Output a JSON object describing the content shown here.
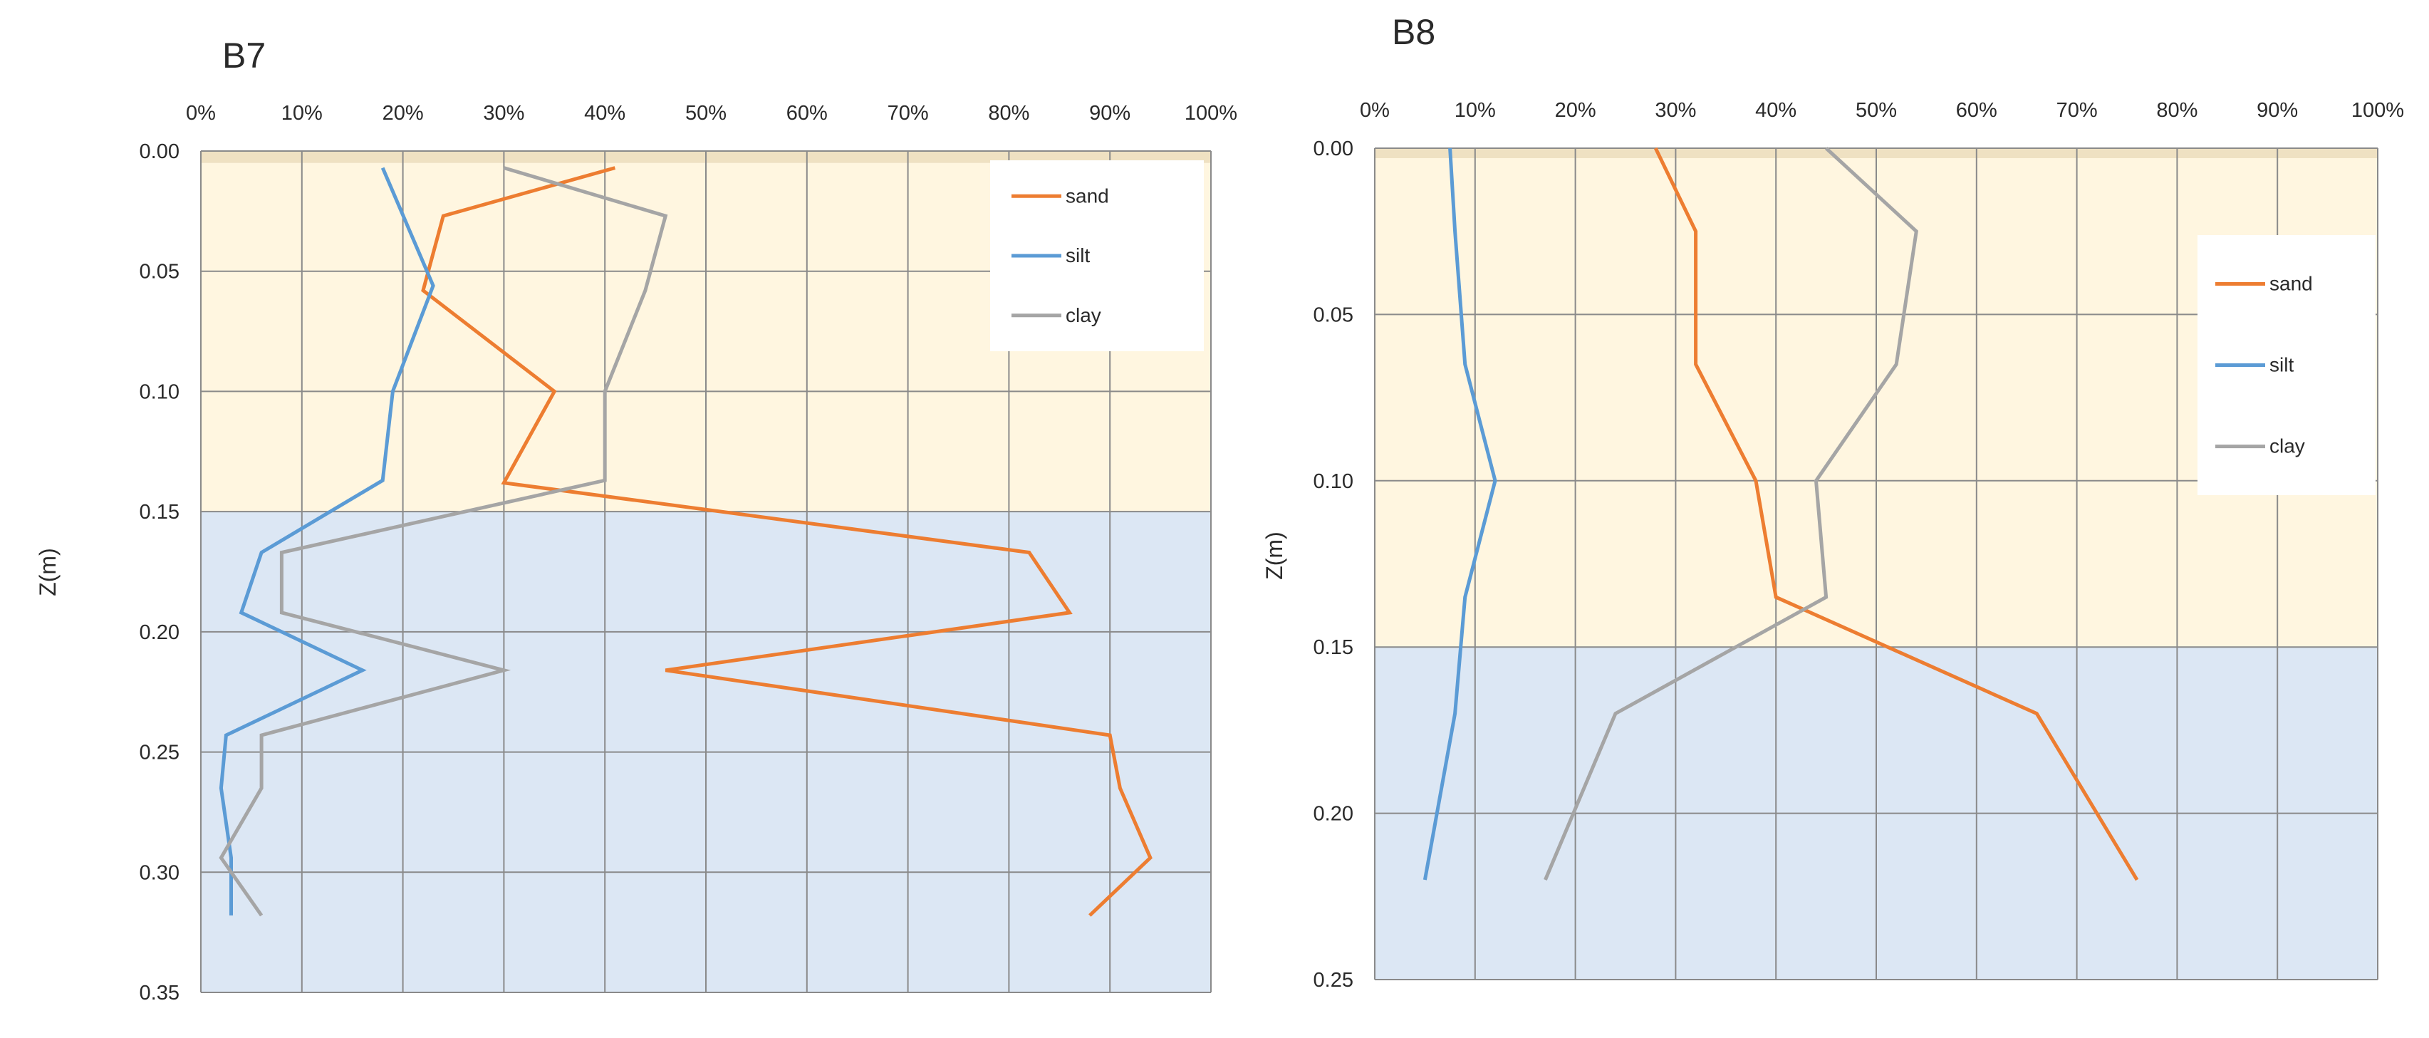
{
  "ylabel": "Z(m)",
  "colors": {
    "sand": "#ED7D31",
    "silt": "#5B9BD5",
    "clay": "#A5A5A5",
    "upper_band": "#FFF6E0",
    "lower_band": "#DCE7F4",
    "top_strip": "#EFE1C2"
  },
  "chart_data": [
    {
      "type": "line",
      "title": "B7",
      "xlabel": "",
      "ylabel": "Z(m)",
      "xlim": [
        0,
        100
      ],
      "ylim": [
        0,
        0.35
      ],
      "x_ticks": [
        "0%",
        "10%",
        "20%",
        "30%",
        "40%",
        "50%",
        "60%",
        "70%",
        "80%",
        "90%",
        "100%"
      ],
      "y_ticks": [
        "0.00",
        "0.05",
        "0.10",
        "0.15",
        "0.20",
        "0.25",
        "0.30",
        "0.35"
      ],
      "bands": [
        {
          "from": 0.0,
          "to": 0.005,
          "color": "top_strip"
        },
        {
          "from": 0.005,
          "to": 0.15,
          "color": "upper_band"
        },
        {
          "from": 0.15,
          "to": 0.35,
          "color": "lower_band"
        }
      ],
      "legend": {
        "position": "top-right"
      },
      "series": [
        {
          "name": "sand",
          "points": [
            [
              41,
              0.007
            ],
            [
              24,
              0.027
            ],
            [
              22,
              0.058
            ],
            [
              35,
              0.1
            ],
            [
              30,
              0.138
            ],
            [
              82,
              0.167
            ],
            [
              86,
              0.192
            ],
            [
              46,
              0.216
            ],
            [
              90,
              0.243
            ],
            [
              91,
              0.265
            ],
            [
              94,
              0.294
            ],
            [
              88,
              0.318
            ]
          ]
        },
        {
          "name": "silt",
          "points": [
            [
              18,
              0.007
            ],
            [
              23,
              0.056
            ],
            [
              19,
              0.1
            ],
            [
              18,
              0.137
            ],
            [
              6,
              0.167
            ],
            [
              4,
              0.192
            ],
            [
              16,
              0.216
            ],
            [
              2.5,
              0.243
            ],
            [
              2,
              0.265
            ],
            [
              3,
              0.294
            ],
            [
              3,
              0.318
            ]
          ]
        },
        {
          "name": "clay",
          "points": [
            [
              30,
              0.007
            ],
            [
              46,
              0.027
            ],
            [
              44,
              0.058
            ],
            [
              40,
              0.1
            ],
            [
              40,
              0.137
            ],
            [
              8,
              0.167
            ],
            [
              8,
              0.192
            ],
            [
              30,
              0.216
            ],
            [
              6,
              0.243
            ],
            [
              6,
              0.265
            ],
            [
              2,
              0.294
            ],
            [
              6,
              0.318
            ]
          ]
        }
      ]
    },
    {
      "type": "line",
      "title": "B8",
      "xlabel": "",
      "ylabel": "Z(m)",
      "xlim": [
        0,
        100
      ],
      "ylim": [
        0,
        0.25
      ],
      "x_ticks": [
        "0%",
        "10%",
        "20%",
        "30%",
        "40%",
        "50%",
        "60%",
        "70%",
        "80%",
        "90%",
        "100%"
      ],
      "y_ticks": [
        "0.00",
        "0.05",
        "0.10",
        "0.15",
        "0.20",
        "0.25"
      ],
      "bands": [
        {
          "from": 0.0,
          "to": 0.003,
          "color": "top_strip"
        },
        {
          "from": 0.003,
          "to": 0.15,
          "color": "upper_band"
        },
        {
          "from": 0.15,
          "to": 0.25,
          "color": "lower_band"
        }
      ],
      "legend": {
        "position": "top-right"
      },
      "series": [
        {
          "name": "sand",
          "points": [
            [
              28,
              0.0
            ],
            [
              32,
              0.025
            ],
            [
              32,
              0.065
            ],
            [
              38,
              0.1
            ],
            [
              40,
              0.135
            ],
            [
              66,
              0.17
            ],
            [
              76,
              0.22
            ]
          ]
        },
        {
          "name": "silt",
          "points": [
            [
              7.5,
              0.0
            ],
            [
              8,
              0.025
            ],
            [
              9,
              0.065
            ],
            [
              12,
              0.1
            ],
            [
              9,
              0.135
            ],
            [
              8,
              0.17
            ],
            [
              5,
              0.22
            ]
          ]
        },
        {
          "name": "clay",
          "points": [
            [
              45,
              0.0
            ],
            [
              54,
              0.025
            ],
            [
              52,
              0.065
            ],
            [
              44,
              0.1
            ],
            [
              45,
              0.135
            ],
            [
              24,
              0.17
            ],
            [
              17,
              0.22
            ]
          ]
        }
      ]
    }
  ]
}
